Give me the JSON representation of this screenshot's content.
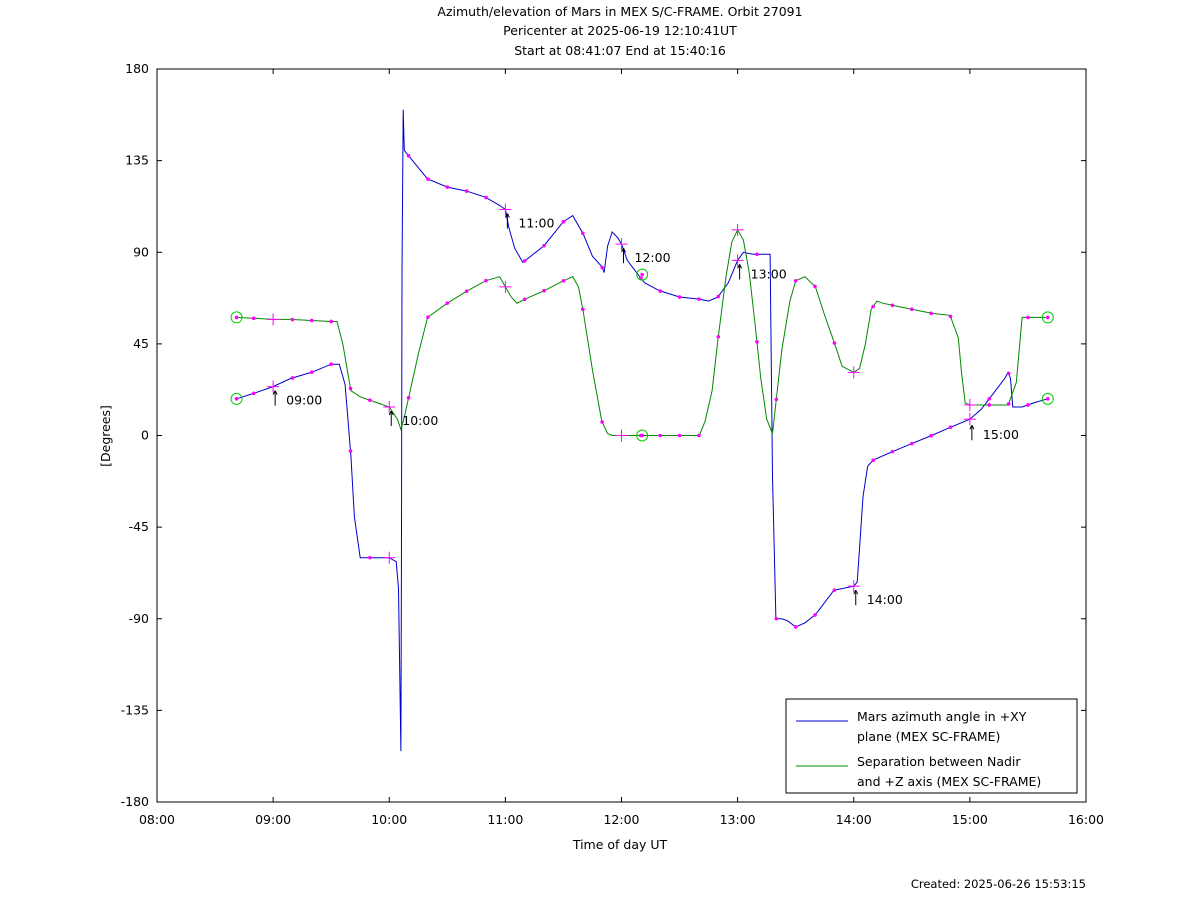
{
  "chart_data": {
    "type": "line",
    "title": "Azimuth/elevation of Mars in MEX S/C-FRAME.  Orbit 27091",
    "subtitle_1": "Pericenter at 2025-06-19 12:10:41UT",
    "subtitle_2": "Start at 08:41:07 End at 15:40:16",
    "xlabel": "Time of day UT",
    "ylabel": "[Degrees]",
    "xlim": [
      8,
      16
    ],
    "ylim": [
      -180,
      180
    ],
    "xticks": [
      "08:00",
      "09:00",
      "10:00",
      "11:00",
      "12:00",
      "13:00",
      "14:00",
      "15:00",
      "16:00"
    ],
    "yticks": [
      180,
      135,
      90,
      45,
      0,
      -45,
      -90,
      -135,
      -180
    ],
    "legend_position": "bottom-right",
    "hour_annotations": [
      {
        "t": 9,
        "y": 24,
        "label": "09:00"
      },
      {
        "t": 10,
        "y": 14,
        "label": "10:00"
      },
      {
        "t": 11,
        "y": 111,
        "label": "11:00"
      },
      {
        "t": 12,
        "y": 94,
        "label": "12:00"
      },
      {
        "t": 13,
        "y": 86,
        "label": "13:00"
      },
      {
        "t": 14,
        "y": -74,
        "label": "14:00"
      },
      {
        "t": 15,
        "y": 7,
        "label": "15:00"
      }
    ],
    "series": [
      {
        "name": "Mars azimuth angle in +XY plane (MEX SC-FRAME)",
        "color": "#0000cc",
        "x": [
          8.685,
          8.85,
          9.0,
          9.15,
          9.33,
          9.5,
          9.57,
          9.62,
          9.67,
          9.7,
          9.75,
          9.85,
          10.0,
          10.06,
          10.08,
          10.1,
          10.105,
          10.11,
          10.12,
          10.13,
          10.2,
          10.33,
          10.5,
          10.67,
          10.83,
          10.95,
          11.0,
          11.03,
          11.08,
          11.15,
          11.33,
          11.5,
          11.58,
          11.67,
          11.75,
          11.83,
          11.85,
          11.88,
          11.92,
          11.97,
          12.0,
          12.05,
          12.17,
          12.2,
          12.33,
          12.5,
          12.67,
          12.75,
          12.83,
          12.92,
          13.0,
          13.05,
          13.13,
          13.28,
          13.3,
          13.33,
          13.38,
          13.43,
          13.5,
          13.58,
          13.67,
          13.83,
          14.0,
          14.03,
          14.05,
          14.08,
          14.12,
          14.17,
          14.33,
          14.5,
          14.67,
          14.83,
          15.0,
          15.1,
          15.18,
          15.3,
          15.33,
          15.35,
          15.37,
          15.45,
          15.55,
          15.67
        ],
        "y": [
          18,
          21,
          24,
          28,
          31,
          35,
          35,
          25,
          -10,
          -40,
          -60,
          -60,
          -60,
          -62,
          -75,
          -155,
          -70,
          80,
          160,
          140,
          135,
          126,
          122,
          120,
          117,
          113,
          111,
          102,
          92,
          85,
          93,
          105,
          108,
          99,
          88,
          83,
          80,
          93,
          100,
          97,
          94,
          86,
          77,
          75,
          71,
          68,
          67,
          66,
          68,
          75,
          86,
          90,
          89,
          89,
          -20,
          -90,
          -90,
          -91,
          -94,
          -92,
          -88,
          -76,
          -74,
          -72,
          -55,
          -30,
          -15,
          -12,
          -8,
          -4,
          0,
          4,
          8,
          13,
          19,
          28,
          31,
          28,
          14,
          14,
          16,
          18
        ]
      },
      {
        "name": "Separation between Nadir and +Z axis (MEX SC-FRAME)",
        "color": "#008800",
        "x": [
          8.685,
          8.85,
          9.0,
          9.15,
          9.33,
          9.5,
          9.55,
          9.6,
          9.67,
          9.75,
          9.85,
          10.0,
          10.07,
          10.1,
          10.13,
          10.18,
          10.25,
          10.33,
          10.5,
          10.67,
          10.83,
          10.95,
          11.0,
          11.05,
          11.1,
          11.17,
          11.33,
          11.5,
          11.58,
          11.63,
          11.67,
          11.75,
          11.83,
          11.88,
          11.92,
          11.97,
          12.0,
          12.05,
          12.17,
          12.33,
          12.5,
          12.67,
          12.72,
          12.78,
          12.83,
          12.9,
          12.95,
          13.0,
          13.05,
          13.1,
          13.15,
          13.2,
          13.25,
          13.3,
          13.33,
          13.38,
          13.45,
          13.5,
          13.58,
          13.67,
          13.75,
          13.83,
          13.9,
          14.0,
          14.05,
          14.1,
          14.15,
          14.2,
          14.25,
          14.33,
          14.5,
          14.67,
          14.83,
          14.9,
          14.93,
          14.96,
          15.0,
          15.17,
          15.33,
          15.4,
          15.45,
          15.55,
          15.67
        ],
        "y": [
          58,
          57.5,
          57,
          57,
          56.5,
          56,
          56,
          45,
          22,
          19,
          17,
          14,
          8,
          3,
          9,
          22,
          40,
          58,
          65,
          71,
          76,
          78,
          73,
          68,
          65,
          67,
          71,
          76,
          78,
          73,
          61,
          32,
          7,
          1,
          0,
          0,
          0,
          0,
          0,
          0,
          0,
          0,
          7,
          22,
          47,
          78,
          95,
          101,
          96,
          80,
          55,
          28,
          8,
          1,
          16,
          42,
          66,
          76,
          78,
          73,
          59,
          46,
          34,
          31,
          33,
          45,
          62,
          66,
          65,
          64,
          62,
          60,
          59,
          48,
          30,
          16,
          15,
          15,
          15,
          26,
          58,
          58,
          58
        ]
      }
    ],
    "markers": [
      {
        "t": 8.685,
        "y": 18,
        "kind": "start"
      },
      {
        "t": 8.685,
        "y": 58,
        "kind": "start"
      },
      {
        "t": 12.178,
        "y": 79,
        "kind": "pericenter"
      },
      {
        "t": 12.178,
        "y": 0,
        "kind": "pericenter"
      },
      {
        "t": 15.671,
        "y": 18,
        "kind": "end"
      },
      {
        "t": 15.671,
        "y": 58,
        "kind": "end"
      }
    ]
  },
  "footer": {
    "created": "Created: 2025-06-26 15:53:15"
  }
}
